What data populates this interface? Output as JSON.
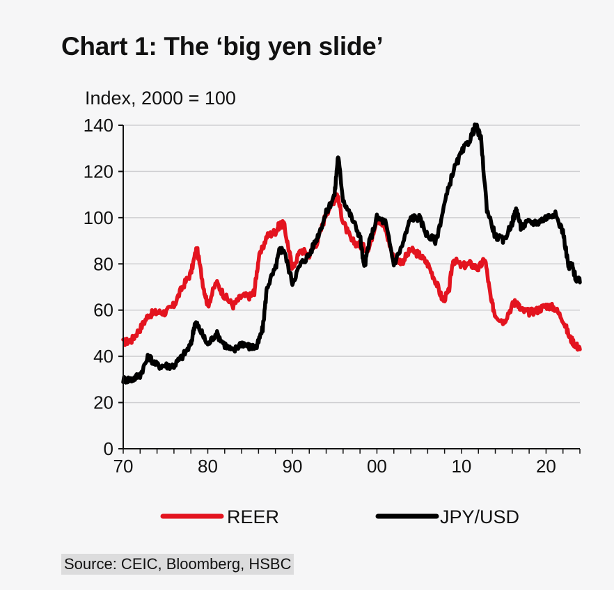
{
  "chart_data": {
    "type": "line",
    "title": "Chart 1: The ‘big yen slide’",
    "ylabel": "Index, 2000 = 100",
    "xlabel": "",
    "ylim": [
      0,
      140
    ],
    "xlim": [
      1970,
      2024
    ],
    "yticks": [
      "0",
      "20",
      "40",
      "60",
      "80",
      "100",
      "120",
      "140"
    ],
    "xticks": [
      {
        "value": 1970,
        "label": "70"
      },
      {
        "value": 1980,
        "label": "80"
      },
      {
        "value": 1990,
        "label": "90"
      },
      {
        "value": 2000,
        "label": "00"
      },
      {
        "value": 2010,
        "label": "10"
      },
      {
        "value": 2020,
        "label": "20"
      }
    ],
    "grid": "horizontal",
    "legend": "bottom",
    "series": [
      {
        "name": "REER",
        "color": "#e3141f",
        "x": [
          1970,
          1971,
          1972,
          1973,
          1974,
          1975,
          1976,
          1977,
          1978,
          1978.7,
          1979.5,
          1980,
          1981,
          1982,
          1983,
          1984,
          1985,
          1985.5,
          1986,
          1987,
          1988,
          1988.5,
          1989,
          1989.7,
          1990,
          1991,
          1992,
          1993,
          1994,
          1995,
          1995.3,
          1996,
          1997,
          1998,
          1999,
          2000,
          2001,
          2002,
          2003,
          2004,
          2005,
          2006,
          2007,
          2007.8,
          2008.5,
          2009,
          2010,
          2011,
          2012,
          2012.8,
          2013.5,
          2014,
          2015,
          2016,
          2016.5,
          2017,
          2018,
          2019,
          2020,
          2021,
          2022,
          2022.8,
          2023.5,
          2024
        ],
        "values": [
          46,
          47,
          52,
          58,
          59,
          59,
          62,
          70,
          76,
          87,
          70,
          62,
          72,
          66,
          62,
          66,
          66,
          68,
          82,
          92,
          94,
          97,
          97,
          84,
          78,
          86,
          84,
          90,
          102,
          108,
          110,
          98,
          90,
          88,
          86,
          100,
          95,
          82,
          81,
          86,
          84,
          80,
          72,
          64,
          68,
          82,
          79,
          80,
          78,
          82,
          64,
          58,
          55,
          62,
          64,
          60,
          59,
          60,
          62,
          61,
          56,
          48,
          45,
          43
        ]
      },
      {
        "name": "JPY/USD",
        "color": "#000000",
        "x": [
          1970,
          1971,
          1972,
          1973,
          1974,
          1975,
          1976,
          1977,
          1978,
          1978.5,
          1979,
          1980,
          1981,
          1982,
          1983,
          1984,
          1985,
          1985.8,
          1986.5,
          1987,
          1988,
          1988.5,
          1989,
          1990,
          1991,
          1992,
          1993,
          1994,
          1995,
          1995.4,
          1996,
          1997,
          1998,
          1998.5,
          1999,
          2000,
          2001,
          2002,
          2003,
          2004,
          2005,
          2006,
          2007,
          2008,
          2009,
          2010,
          2011,
          2011.7,
          2012.3,
          2013,
          2014,
          2015,
          2016,
          2016.5,
          2017,
          2018,
          2019,
          2020,
          2021,
          2022,
          2022.7,
          2023,
          2023.5,
          2024
        ],
        "values": [
          30,
          30,
          32,
          40,
          36,
          36,
          36,
          40,
          45,
          55,
          52,
          45,
          50,
          45,
          42,
          46,
          44,
          44,
          52,
          70,
          78,
          86,
          86,
          72,
          80,
          84,
          92,
          102,
          110,
          127,
          108,
          100,
          92,
          78,
          88,
          100,
          98,
          80,
          88,
          100,
          100,
          92,
          90,
          106,
          120,
          128,
          134,
          140,
          134,
          104,
          92,
          90,
          98,
          104,
          96,
          98,
          98,
          100,
          102,
          94,
          78,
          80,
          74,
          72
        ]
      }
    ]
  },
  "source_text": "Source: CEIC, Bloomberg, HSBC"
}
